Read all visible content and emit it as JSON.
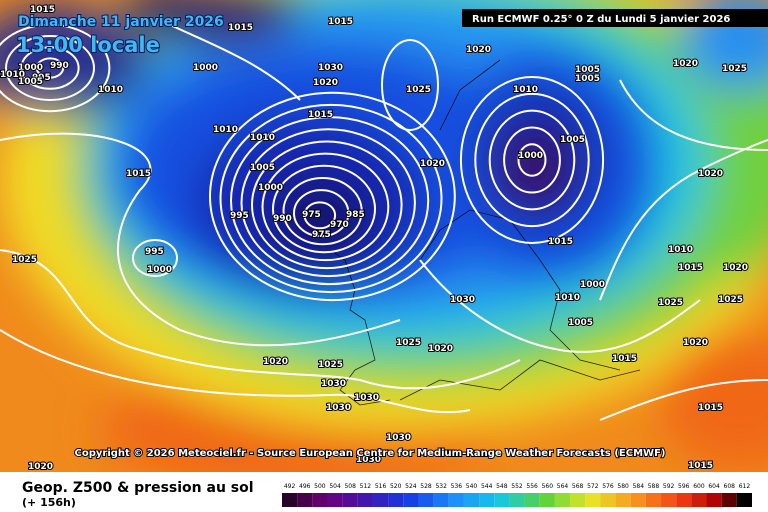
{
  "header": {
    "date": "Dimanche 11 janvier 2026",
    "time": "13:00 locale",
    "run": "Run ECMWF 0.25° 0 Z du Lundi 5 janvier 2026"
  },
  "isobar_labels": [
    "1015",
    "1015",
    "1015",
    "1000",
    "990",
    "995",
    "1010",
    "1005",
    "1010",
    "1000",
    "1030",
    "1020",
    "1015",
    "1010",
    "1010",
    "1005",
    "1000",
    "995",
    "990",
    "975",
    "970",
    "975",
    "985",
    "1015",
    "995",
    "1000",
    "1025",
    "1020",
    "1025",
    "1030",
    "1030",
    "1030",
    "1030",
    "1025",
    "1020",
    "1030",
    "1020",
    "1025",
    "1020",
    "1010",
    "1000",
    "1005",
    "1015",
    "1010",
    "1000",
    "1005",
    "1015",
    "1020",
    "1010",
    "1015",
    "1020",
    "1025",
    "1025",
    "1020",
    "1015",
    "1015",
    "1020",
    "1025",
    "1020",
    "1005",
    "1005",
    "1030"
  ],
  "copyright": "Copyright © 2026 Meteociel.fr - Source European Centre for Medium-Range Weather Forecasts (ECMWF)",
  "footer": {
    "title": "Geop. Z500 & pression au sol",
    "lead": "(+ 156h)"
  },
  "scale": {
    "labels": [
      492,
      496,
      500,
      504,
      508,
      512,
      516,
      520,
      524,
      528,
      532,
      536,
      540,
      544,
      548,
      552,
      556,
      560,
      564,
      568,
      572,
      576,
      580,
      584,
      588,
      592,
      596,
      600,
      604,
      608,
      612
    ]
  }
}
